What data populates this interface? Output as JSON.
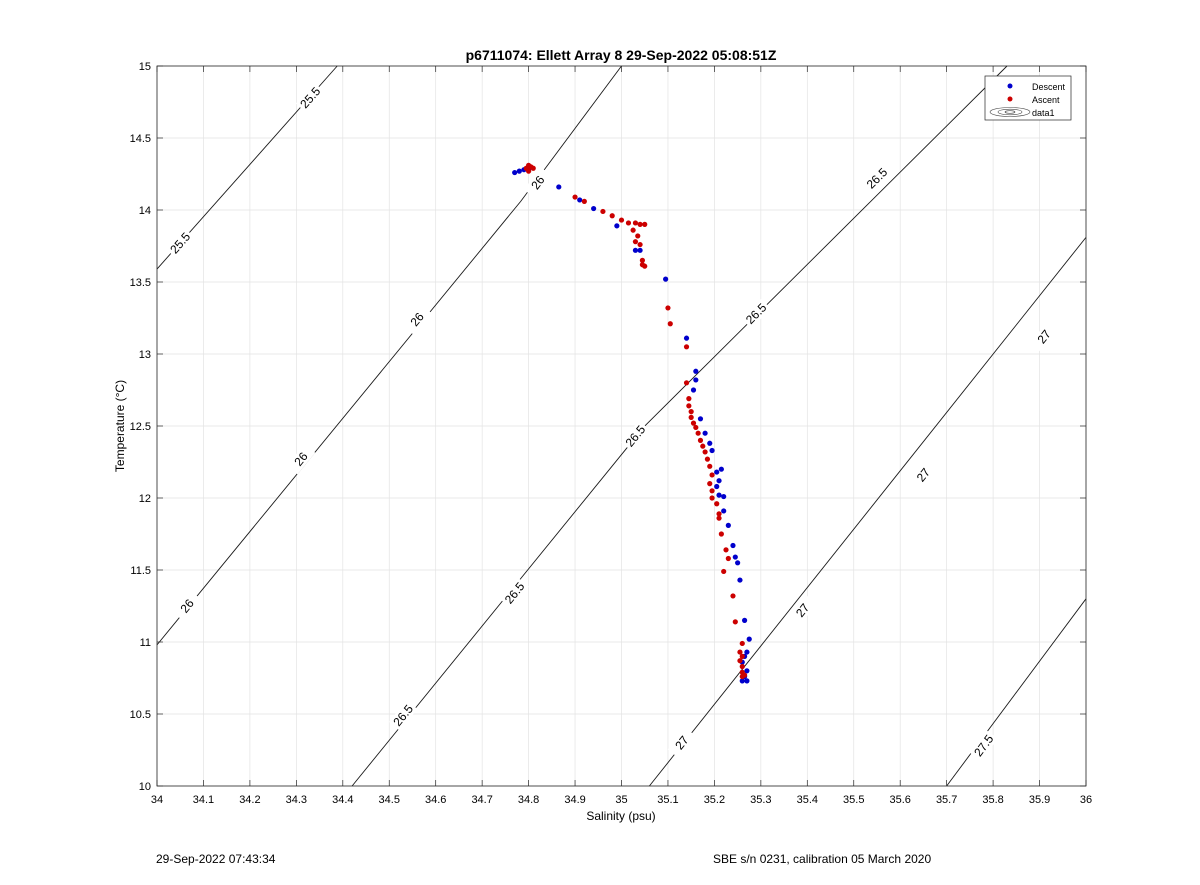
{
  "footer": {
    "timestamp": "29-Sep-2022 07:43:34",
    "instrument": "SBE s/n 0231, calibration 05 March 2020"
  },
  "chart_data": {
    "type": "scatter",
    "title": "p6711074: Ellett Array 8 29-Sep-2022 05:08:51Z",
    "xlabel": "Salinity (psu)",
    "ylabel": "Temperature (°C)",
    "xlim": [
      34,
      36
    ],
    "ylim": [
      10,
      15
    ],
    "grid": true,
    "xticks": [
      34,
      34.1,
      34.2,
      34.3,
      34.4,
      34.5,
      34.6,
      34.7,
      34.8,
      34.9,
      35,
      35.1,
      35.2,
      35.3,
      35.4,
      35.5,
      35.6,
      35.7,
      35.8,
      35.9,
      36
    ],
    "yticks": [
      10,
      10.5,
      11,
      11.5,
      12,
      12.5,
      13,
      13.5,
      14,
      14.5,
      15
    ],
    "legend": {
      "placement": "top-right",
      "entries": [
        "Descent",
        "Ascent",
        "data1"
      ]
    },
    "series": [
      {
        "name": "Descent",
        "color": "#0000cc",
        "points": [
          [
            34.77,
            14.26
          ],
          [
            34.78,
            14.27
          ],
          [
            34.79,
            14.28
          ],
          [
            34.8,
            14.28
          ],
          [
            34.865,
            14.16
          ],
          [
            34.91,
            14.07
          ],
          [
            34.94,
            14.01
          ],
          [
            34.99,
            13.89
          ],
          [
            35.03,
            13.72
          ],
          [
            35.04,
            13.72
          ],
          [
            35.095,
            13.52
          ],
          [
            35.14,
            13.11
          ],
          [
            35.16,
            12.88
          ],
          [
            35.16,
            12.82
          ],
          [
            35.155,
            12.75
          ],
          [
            35.17,
            12.55
          ],
          [
            35.18,
            12.45
          ],
          [
            35.19,
            12.38
          ],
          [
            35.195,
            12.33
          ],
          [
            35.205,
            12.18
          ],
          [
            35.21,
            12.12
          ],
          [
            35.215,
            12.2
          ],
          [
            35.205,
            12.08
          ],
          [
            35.21,
            12.02
          ],
          [
            35.22,
            12.01
          ],
          [
            35.22,
            11.91
          ],
          [
            35.23,
            11.81
          ],
          [
            35.24,
            11.67
          ],
          [
            35.245,
            11.59
          ],
          [
            35.25,
            11.55
          ],
          [
            35.255,
            11.43
          ],
          [
            35.265,
            11.15
          ],
          [
            35.275,
            11.02
          ],
          [
            35.27,
            10.93
          ],
          [
            35.265,
            10.9
          ],
          [
            35.26,
            10.86
          ],
          [
            35.27,
            10.8
          ],
          [
            35.265,
            10.76
          ],
          [
            35.27,
            10.73
          ],
          [
            35.26,
            10.73
          ]
        ]
      },
      {
        "name": "Ascent",
        "color": "#cc0000",
        "points": [
          [
            34.8,
            14.31
          ],
          [
            34.805,
            14.3
          ],
          [
            34.8,
            14.27
          ],
          [
            34.81,
            14.29
          ],
          [
            34.795,
            14.29
          ],
          [
            34.9,
            14.09
          ],
          [
            34.92,
            14.06
          ],
          [
            34.96,
            13.99
          ],
          [
            34.98,
            13.96
          ],
          [
            35.0,
            13.93
          ],
          [
            35.015,
            13.91
          ],
          [
            35.03,
            13.91
          ],
          [
            35.04,
            13.9
          ],
          [
            35.05,
            13.9
          ],
          [
            35.025,
            13.86
          ],
          [
            35.035,
            13.82
          ],
          [
            35.03,
            13.78
          ],
          [
            35.04,
            13.76
          ],
          [
            35.045,
            13.65
          ],
          [
            35.05,
            13.61
          ],
          [
            35.045,
            13.62
          ],
          [
            35.1,
            13.32
          ],
          [
            35.105,
            13.21
          ],
          [
            35.14,
            13.05
          ],
          [
            35.14,
            12.8
          ],
          [
            35.145,
            12.69
          ],
          [
            35.145,
            12.64
          ],
          [
            35.15,
            12.6
          ],
          [
            35.15,
            12.56
          ],
          [
            35.155,
            12.52
          ],
          [
            35.16,
            12.49
          ],
          [
            35.165,
            12.45
          ],
          [
            35.17,
            12.4
          ],
          [
            35.175,
            12.36
          ],
          [
            35.18,
            12.32
          ],
          [
            35.185,
            12.27
          ],
          [
            35.19,
            12.22
          ],
          [
            35.195,
            12.16
          ],
          [
            35.19,
            12.1
          ],
          [
            35.195,
            12.05
          ],
          [
            35.195,
            12.0
          ],
          [
            35.205,
            11.96
          ],
          [
            35.21,
            11.89
          ],
          [
            35.21,
            11.86
          ],
          [
            35.215,
            11.75
          ],
          [
            35.225,
            11.64
          ],
          [
            35.23,
            11.58
          ],
          [
            35.22,
            11.49
          ],
          [
            35.24,
            11.32
          ],
          [
            35.245,
            11.14
          ],
          [
            35.26,
            10.99
          ],
          [
            35.255,
            10.93
          ],
          [
            35.26,
            10.9
          ],
          [
            35.255,
            10.87
          ],
          [
            35.26,
            10.83
          ],
          [
            35.26,
            10.79
          ],
          [
            35.265,
            10.77
          ],
          [
            35.26,
            10.76
          ]
        ]
      }
    ],
    "density_contours": [
      {
        "level": "25.5",
        "points": [
          [
            34.0,
            13.59
          ],
          [
            34.388,
            15.0
          ]
        ],
        "labels": [
          [
            34.05,
            13.77
          ],
          [
            34.33,
            14.78
          ]
        ]
      },
      {
        "level": "26",
        "points": [
          [
            34.0,
            10.98
          ],
          [
            34.783,
            14.06
          ],
          [
            35.0,
            15.0
          ]
        ],
        "labels": [
          [
            34.065,
            11.25
          ],
          [
            34.31,
            12.27
          ],
          [
            34.56,
            13.24
          ],
          [
            34.82,
            14.19
          ]
        ]
      },
      {
        "level": "26.5",
        "points": [
          [
            34.42,
            10.0
          ],
          [
            35.05,
            12.5
          ],
          [
            35.83,
            15.0
          ]
        ],
        "labels": [
          [
            34.53,
            10.49
          ],
          [
            34.77,
            11.34
          ],
          [
            35.03,
            12.43
          ],
          [
            35.29,
            13.28
          ],
          [
            35.55,
            14.22
          ]
        ]
      },
      {
        "level": "27",
        "points": [
          [
            35.06,
            10.0
          ],
          [
            36.0,
            13.81
          ]
        ],
        "labels": [
          [
            35.13,
            10.3
          ],
          [
            35.39,
            11.22
          ],
          [
            35.65,
            12.16
          ],
          [
            35.91,
            13.12
          ]
        ]
      },
      {
        "level": "27.5",
        "points": [
          [
            35.7,
            10.0
          ],
          [
            36.0,
            11.3
          ]
        ],
        "labels": [
          [
            35.78,
            10.28
          ]
        ]
      }
    ]
  }
}
